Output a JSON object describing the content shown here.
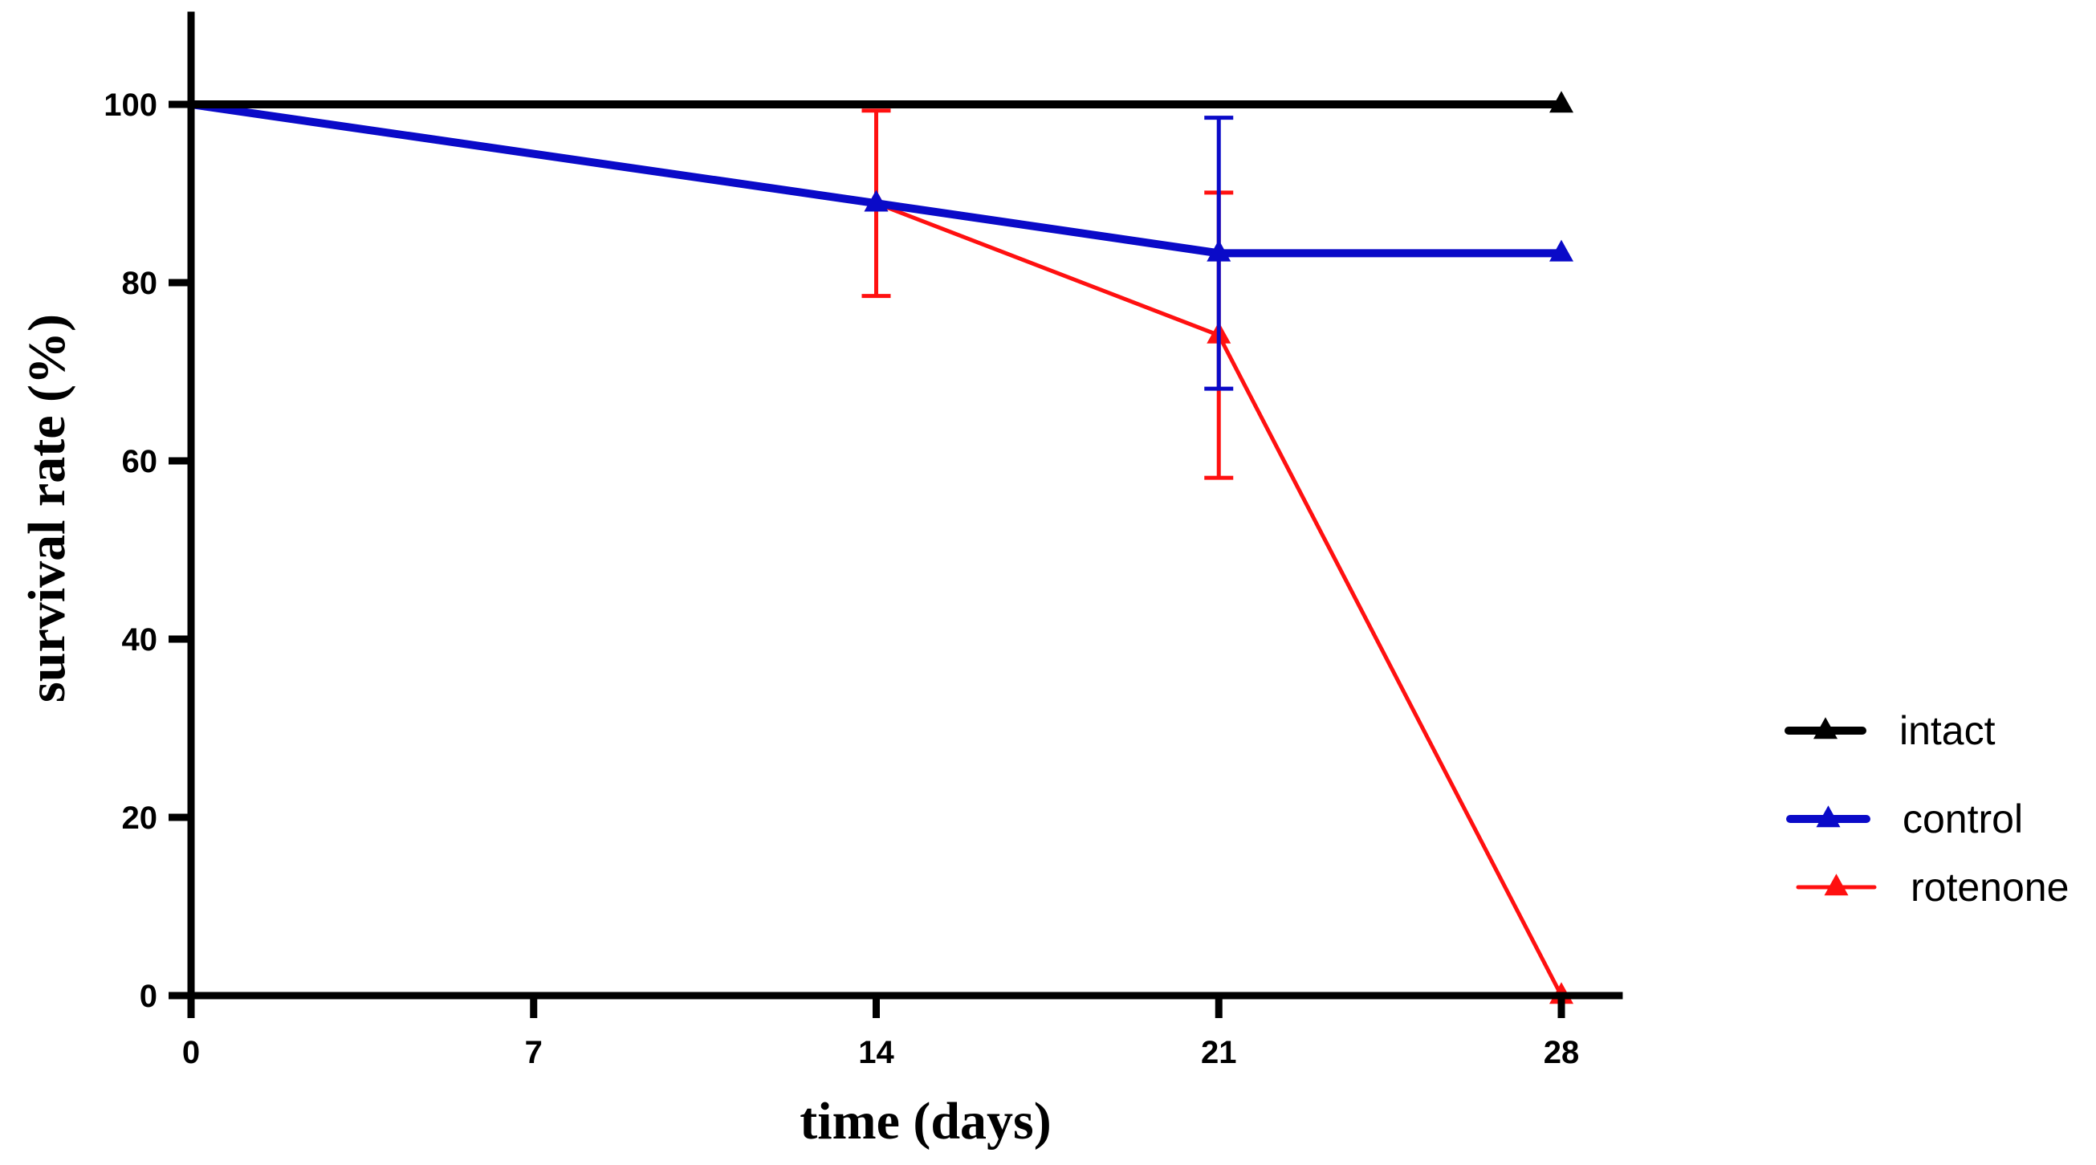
{
  "chart_data": {
    "type": "line",
    "title": "",
    "xlabel": "time (days)",
    "ylabel": "survival rate (%)",
    "xlim": [
      0,
      30
    ],
    "ylim": [
      0,
      110
    ],
    "x_ticks": [
      0,
      7,
      14,
      21,
      28
    ],
    "y_ticks": [
      0,
      20,
      40,
      60,
      80,
      100
    ],
    "grid": false,
    "legend_position": "right",
    "series": [
      {
        "name": "intact",
        "color": "#000000",
        "marker": "triangle",
        "x": [
          0,
          28
        ],
        "y": [
          100,
          100
        ],
        "error": [
          null,
          null
        ]
      },
      {
        "name": "control",
        "color": "#0a0ac8",
        "marker": "triangle",
        "x": [
          0,
          14,
          21,
          28
        ],
        "y": [
          100,
          88.9,
          83.3,
          83.3
        ],
        "error": [
          null,
          null,
          15.2,
          null
        ]
      },
      {
        "name": "rotenone",
        "color": "#ff1010",
        "marker": "triangle",
        "x": [
          0,
          14,
          21,
          28
        ],
        "y": [
          100,
          88.9,
          74.1,
          0
        ],
        "error": [
          null,
          10.4,
          16.0,
          null
        ]
      }
    ]
  }
}
